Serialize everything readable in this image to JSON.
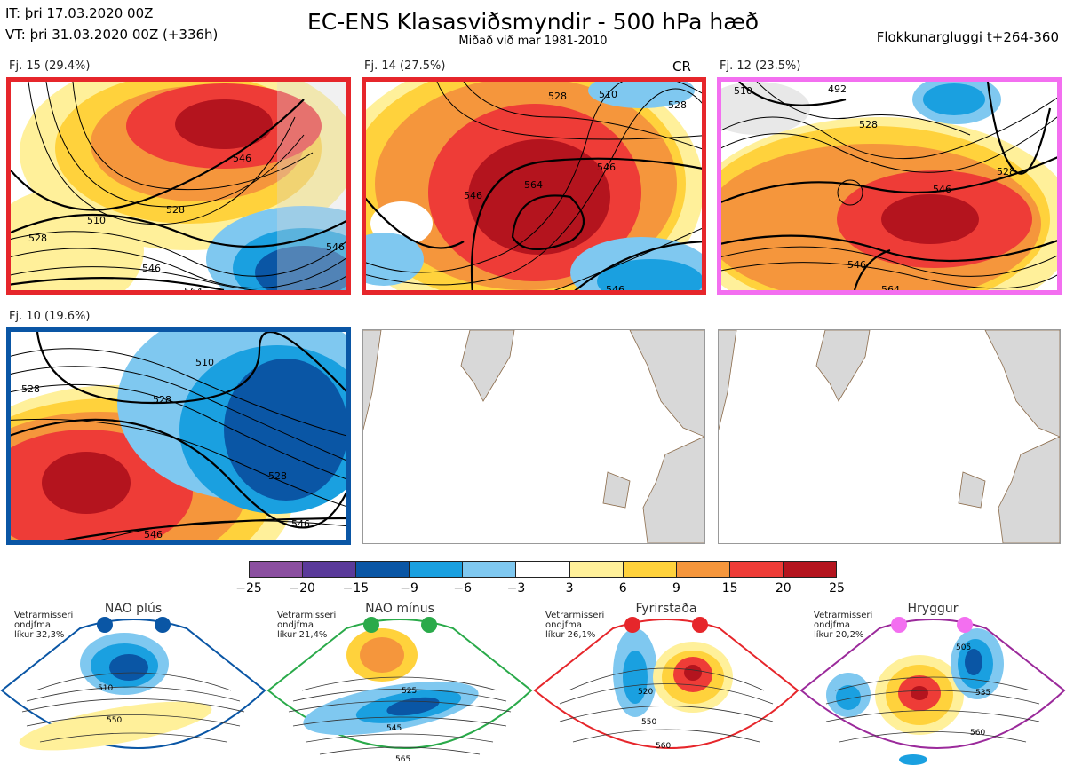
{
  "header": {
    "init_line": "IT: þri 17.03.2020 00Z",
    "valid_line": "VT: þri 31.03.2020 00Z  (+336h)",
    "title": "EC-ENS Klasasviðsmyndir - 500 hPa hæð",
    "subtitle": "Miðað við mar 1981-2010",
    "window": "Flokkunargluggi t+264-360"
  },
  "clusters": [
    {
      "label": "Fj. 15 (29.4%)",
      "border_color": "#e6262b",
      "contour_labels": [
        "510",
        "528",
        "546",
        "546",
        "546",
        "564",
        "528"
      ]
    },
    {
      "label": "Fj. 14 (27.5%)",
      "border_color": "#e6262b",
      "tag": "CR",
      "contour_labels": [
        "510",
        "528",
        "546",
        "564",
        "546",
        "546",
        "528"
      ]
    },
    {
      "label": "Fj. 12 (23.5%)",
      "border_color": "#f36ff0",
      "contour_labels": [
        "510",
        "492",
        "528",
        "528",
        "546",
        "546",
        "564"
      ]
    },
    {
      "label": "Fj. 10 (19.6%)",
      "border_color": "#0a56a5",
      "contour_labels": [
        "510",
        "528",
        "528",
        "528",
        "546",
        "546"
      ]
    }
  ],
  "colorbar": {
    "colors": [
      "#8b4fa0",
      "#5a3a9a",
      "#0a56a5",
      "#1aa0e0",
      "#7fc8f0",
      "#ffffff",
      "#fff09a",
      "#ffd23c",
      "#f5963c",
      "#ee3c37",
      "#b4141e"
    ],
    "ticks": [
      "−25",
      "−20",
      "−15",
      "−9",
      "−6",
      "−3",
      "3",
      "6",
      "9",
      "15",
      "20",
      "25"
    ]
  },
  "regimes": [
    {
      "name": "NAO plús",
      "note": [
        "Vetrarmisseri",
        "ondjfma",
        "líkur 32,3%"
      ],
      "color": "#0a56a5",
      "contour_labels": [
        "510",
        "550"
      ]
    },
    {
      "name": "NAO mínus",
      "note": [
        "Vetrarmisseri",
        "ondjfma",
        "líkur 21,4%"
      ],
      "color": "#2aaa4a",
      "contour_labels": [
        "525",
        "545",
        "565"
      ]
    },
    {
      "name": "Fyrirstaða",
      "note": [
        "Vetrarmisseri",
        "ondjfma",
        "líkur 26,1%"
      ],
      "color": "#e6262b",
      "contour_labels": [
        "520",
        "550",
        "560"
      ]
    },
    {
      "name": "Hryggur",
      "note": [
        "Vetrarmisseri",
        "ondjfma",
        "líkur 20,2%"
      ],
      "color": "#9b2a9b",
      "contour_labels": [
        "505",
        "535",
        "560"
      ]
    }
  ]
}
